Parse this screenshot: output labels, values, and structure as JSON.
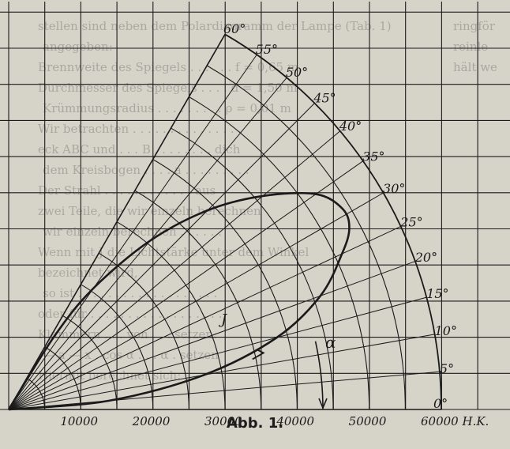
{
  "caption": "Abb. 1.",
  "diagram": {
    "x_axis": {
      "tick_labels": [
        "10000",
        "20000",
        "30000",
        "40000",
        "50000",
        "60000 H.K."
      ],
      "tick_values": [
        10000,
        20000,
        30000,
        40000,
        50000,
        60000
      ]
    },
    "angle_labels": [
      "0°",
      "5°",
      "10°",
      "15°",
      "20°",
      "25°",
      "30°",
      "35°",
      "40°",
      "45°",
      "50°",
      "55°",
      "60°"
    ],
    "angles_deg": [
      0,
      5,
      10,
      15,
      20,
      25,
      30,
      35,
      40,
      45,
      50,
      55,
      60
    ],
    "radial_max": 60000,
    "curve_label": "J",
    "arc_label": "α",
    "intensity_curve": [
      {
        "angle": 0,
        "r": 0
      },
      {
        "angle": 5,
        "r": 14000
      },
      {
        "angle": 10,
        "r": 27500
      },
      {
        "angle": 15,
        "r": 38500
      },
      {
        "angle": 20,
        "r": 46000
      },
      {
        "angle": 25,
        "r": 51000
      },
      {
        "angle": 28,
        "r": 53500
      },
      {
        "angle": 31,
        "r": 54000
      },
      {
        "angle": 35,
        "r": 52000
      },
      {
        "angle": 40,
        "r": 46000
      },
      {
        "angle": 45,
        "r": 39000
      },
      {
        "angle": 50,
        "r": 30500
      },
      {
        "angle": 55,
        "r": 20500
      },
      {
        "angle": 58,
        "r": 12000
      },
      {
        "angle": 60,
        "r": 0
      }
    ]
  },
  "background_text": [
    "stellen sind neben dem Polardiagramm der Lampe (Tab. 1)",
    "angegeben:",
    "Brennweite des Spiegels . . . . . . f = 0,65 m",
    "Durchmesser des Spiegels . . . . d = 1,50 m",
    "Krümmungsradius . . . . . . . . . ρ = 0,01 m",
    "Wir betrachten . . . . . . . . . . . . . . .",
    "eck ABC und . . . B . . . . . . . . dich",
    "dem Kreisbogen . . . . a . . . . . . . . .",
    "Der Strahl . . . . . . . . . . . . aus",
    "zwei Teile, die wir einzeln berechnen",
    "wir einzeln berechnen . . . . . .",
    "Wenn mit J die Lichtstärke unter dem Winkel",
    "bezeichnet wird,",
    "so ist . . . . . . . . . . . . . . . . . . .",
    "oder für . . . . . . . . . . . . . . . . . .",
    "Klammern . . . von . . . setzen:",
    "— a — x . cos α . . . α . setzen",
    "Hiermit berechnet sich:"
  ],
  "margin_text": [
    "ringför",
    "reinle",
    "hält we"
  ]
}
